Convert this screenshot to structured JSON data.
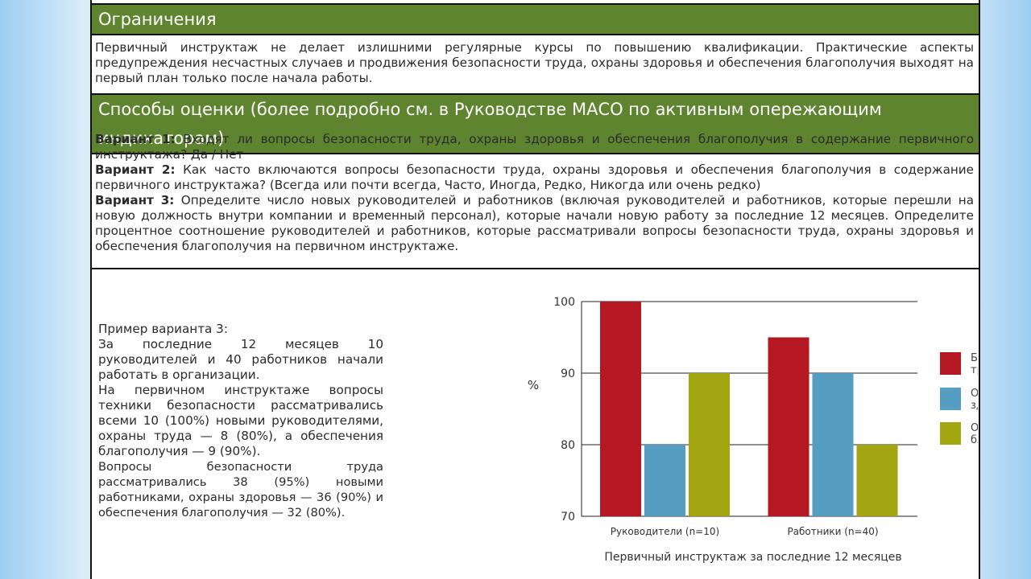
{
  "limitations": {
    "title": "Ограничения",
    "text": "Первичный инструктаж не делает излишними регулярные курсы по повышению квалификации. Практические аспекты предупреждения несчастных случаев и продвижения безопасности труда, охраны здоровья и обеспечения благополучия выходят на первый план только после начала работы."
  },
  "methods": {
    "title": "Способы оценки (более подробно см. в Руководстве МАСО по активным опережающим индикаторам)",
    "options": [
      {
        "label": "Вариант 1:",
        "text": "Входят ли вопросы безопасности труда, охраны здоровья и обеспечения благополучия в содержание первичного инструктажа? Да / Нет"
      },
      {
        "label": "Вариант 2:",
        "text": "Как часто включаются вопросы безопасности труда, охраны здоровья и обеспечения благополучия в содержание первичного инструктажа? (Всегда или почти всегда, Часто, Иногда, Редко, Никогда или очень редко)"
      },
      {
        "label": "Вариант 3:",
        "text": "Определите число новых руководителей и работников (включая руководителей и работников, которые перешли на новую должность внутри компании и временный персонал), которые начали новую работу за последние 12 месяцев. Определите процентное соотношение руководителей и работников, которые рассматривали вопросы безопасности труда, охраны здоровья и обеспечения благополучия на первичном инструктаже."
      }
    ]
  },
  "example": {
    "title": "Пример варианта 3:",
    "p1": "За последние 12 месяцев 10 руководителей и 40 работников начали работать в организации.",
    "p2": "На первичном инструктаже вопросы техники безопасности рассматривались всеми 10 (100%) новыми руководителями, охраны труда — 8 (80%), а обеспечения благополучия — 9 (90%).",
    "p3": "Вопросы безопасности труда рассматривались 38 (95%) новыми работниками, охраны здоровья — 36 (90%) и обеспечения благополучия — 32 (80%)."
  },
  "chart_data": {
    "type": "bar",
    "categories": [
      "Руководители (n=10)",
      "Работники (n=40)"
    ],
    "series": [
      {
        "name": "Безопасность труда",
        "values": [
          100,
          95
        ],
        "color": "#b51823"
      },
      {
        "name": "Охрана здоровья",
        "values": [
          80,
          90
        ],
        "color": "#569dc2"
      },
      {
        "name": "Обеспечение благополучия",
        "values": [
          90,
          80
        ],
        "color": "#a2a50f"
      }
    ],
    "ylabel": "%",
    "xlabel": "Первичный инструктаж за последние 12 месяцев",
    "ylim": [
      70,
      100
    ],
    "yticks": [
      70,
      80,
      90,
      100
    ],
    "grid": true,
    "legend": "right"
  }
}
